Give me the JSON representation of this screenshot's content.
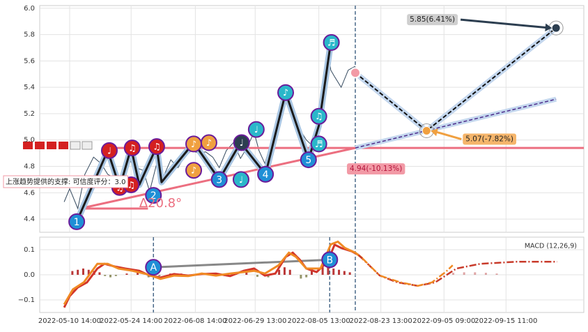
{
  "chart_data": [
    {
      "type": "price",
      "ylim": [
        4.3,
        6.02
      ],
      "yticks": [
        4.4,
        4.6,
        4.8,
        {
          "value": 5.0,
          "label": "5.0"
        },
        5.2,
        5.4,
        5.6,
        5.8,
        {
          "value": 6.0,
          "label": "6.0"
        }
      ],
      "xlim": [
        0,
        100
      ],
      "grid": true,
      "price": {
        "color": "#34495e",
        "x": [
          4.5,
          5.5,
          7.0,
          8.3,
          9.9,
          11.3,
          12.5,
          13.8,
          15.1,
          16.4,
          17.7,
          19.0,
          20.2,
          21.5,
          22.4,
          24.1,
          25.4,
          26.6,
          27.9,
          29.2,
          30.5,
          31.8,
          33.0,
          34.3,
          35.6,
          36.9,
          38.2,
          39.4,
          40.3,
          41.4,
          42.6,
          43.9,
          45.2,
          46.5,
          47.8,
          49.0,
          50.3,
          50.9,
          51.6,
          52.2,
          52.9,
          53.5,
          54.2,
          55.4,
          56.7,
          58.0
        ],
        "values": [
          4.53,
          4.63,
          4.48,
          4.74,
          4.87,
          4.82,
          4.74,
          4.71,
          4.68,
          4.85,
          4.79,
          4.77,
          4.61,
          4.82,
          4.69,
          4.85,
          4.79,
          4.87,
          4.92,
          4.9,
          4.91,
          4.87,
          4.79,
          4.92,
          4.98,
          4.86,
          4.95,
          5.06,
          4.92,
          4.82,
          5.0,
          5.14,
          5.32,
          5.19,
          5.08,
          5.0,
          4.95,
          5.03,
          5.11,
          5.43,
          5.73,
          5.53,
          5.48,
          5.4,
          5.53,
          5.56
        ]
      },
      "wave": {
        "color": "#1b1b1b",
        "halo": "#a9c6e3",
        "x": [
          6.8,
          12.5,
          14.7,
          16.8,
          18.3,
          21.5,
          22.4,
          28.3,
          33.0,
          36.9,
          41.5,
          45.2,
          49.4,
          51.3,
          53.5
        ],
        "values": [
          4.38,
          4.92,
          4.64,
          4.94,
          4.66,
          4.95,
          4.68,
          4.98,
          4.7,
          4.98,
          4.74,
          5.36,
          4.85,
          5.11,
          5.74
        ]
      },
      "support": {
        "color": "#ec6f80",
        "x": [
          7.4,
          58.0
        ],
        "values": [
          4.48,
          4.94
        ]
      },
      "support_base": {
        "color": "#ec6f80",
        "x": [
          7.4,
          19.9
        ],
        "values": [
          4.48,
          4.48
        ]
      },
      "support_ext": {
        "color": "#4b2a8a",
        "halo": "#c4d7ee",
        "x": [
          58.0,
          94.9
        ],
        "values": [
          4.94,
          5.31
        ]
      },
      "resistance": {
        "color": "#ec6f80",
        "x": [
          11.9,
          100
        ],
        "values": [
          4.94,
          4.94
        ]
      },
      "projection": {
        "color": "#111111",
        "halo": "#c4d7ee",
        "x": [
          58.0,
          71.1,
          94.9
        ],
        "values": [
          5.51,
          5.07,
          5.85
        ]
      },
      "points": {
        "color": "#1f8fd6",
        "labels": [
          "1",
          "2",
          "3",
          "4",
          "5"
        ],
        "x": [
          6.8,
          20.9,
          33.0,
          41.5,
          49.4
        ],
        "values": [
          4.38,
          4.58,
          4.7,
          4.74,
          4.85
        ]
      },
      "signals": {
        "labels": [
          "♩",
          "♫",
          "♫",
          "♫",
          "♫",
          "♪",
          "♪",
          "♪",
          "♩",
          "♩",
          "♩",
          "♪",
          "♫",
          "♬",
          "♬"
        ],
        "colors": [
          "#d42020",
          "#d42020",
          "#d42020",
          "#d42020",
          "#d42020",
          "#f0a040",
          "#f0a040",
          "#f0a040",
          "#2c3e50",
          "#2ab7ca",
          "#2ab7ca",
          "#2ab7ca",
          "#2ab7ca",
          "#2ab7ca",
          "#2ab7ca"
        ],
        "x": [
          12.8,
          17.0,
          21.5,
          14.7,
          16.8,
          28.3,
          31.1,
          28.3,
          37.1,
          39.8,
          37.0,
          45.2,
          51.3,
          51.3,
          53.6
        ],
        "values": [
          4.92,
          4.94,
          4.95,
          4.64,
          4.66,
          4.97,
          4.98,
          4.77,
          4.98,
          5.08,
          4.7,
          5.36,
          5.18,
          4.97,
          5.74
        ]
      },
      "annotations": [
        {
          "text": "5.85(6.41%)",
          "x": 94.9,
          "value": 5.85,
          "color": "#cfcfcf"
        },
        {
          "text": "5.07(-7.82%)",
          "x": 71.1,
          "value": 5.07,
          "color": "#f5b56b"
        },
        {
          "text": "4.94(-10.13%)",
          "x": 58.0,
          "value": 4.94,
          "color": "#f29aa6"
        }
      ],
      "support_note": "上涨趋势提供的支撑: 可信度评分：3.0",
      "angle_label": "∆20.8°"
    },
    {
      "type": "macd",
      "title": "MACD (12,26,9)",
      "ylim": [
        -0.15,
        0.15
      ],
      "yticks": [
        {
          "value": -0.1,
          "label": "−0.1"
        },
        {
          "value": 0,
          "label": "0.0"
        },
        0.1
      ],
      "xlim": [
        0,
        100
      ],
      "grid": true,
      "xticks": [
        {
          "value": 5.5,
          "label": "2022-05-10 14:00"
        },
        {
          "value": 16.8,
          "label": "2022-05-24 14:00"
        },
        {
          "value": 28.6,
          "label": "2022-06-08 14:00"
        },
        {
          "value": 39.6,
          "label": "2022-06-29 13:00"
        },
        {
          "value": 51.3,
          "label": "2022-08-05 13:00"
        },
        {
          "value": 62.7,
          "label": "2022-08-23 13:00"
        },
        {
          "value": 74.3,
          "label": "2022-09-05 09:00"
        },
        {
          "value": 85.7,
          "label": "2022-09-15 11:00"
        }
      ],
      "macd": {
        "color": "#d2352a",
        "x": [
          4.5,
          5.5,
          7.0,
          8.7,
          10.6,
          11.9,
          13.8,
          15.7,
          18.3,
          20.2,
          22.2,
          24.7,
          27.3,
          29.8,
          32.4,
          35.0,
          37.5,
          39.4,
          41.4,
          43.3,
          45.2,
          46.5,
          47.8,
          49.0,
          50.9,
          52.9,
          54.2,
          55.4,
          57.4,
          58.6
        ],
        "values": [
          -0.13,
          -0.085,
          -0.05,
          -0.03,
          0.025,
          0.044,
          0.033,
          0.025,
          0.016,
          -0.003,
          -0.011,
          0.003,
          -0.003,
          0.003,
          0.005,
          -0.005,
          0.016,
          0.025,
          -0.003,
          0.005,
          0.071,
          0.088,
          0.06,
          0.025,
          0.011,
          0.052,
          0.12,
          0.107,
          0.093,
          0.079
        ]
      },
      "signal": {
        "color": "#f08a24",
        "x": [
          4.5,
          6.1,
          8.1,
          10.6,
          12.5,
          14.5,
          17.0,
          19.6,
          22.2,
          24.7,
          27.3,
          29.8,
          32.4,
          35.0,
          37.5,
          39.4,
          41.4,
          43.9,
          45.8,
          47.1,
          49.0,
          51.6,
          53.5,
          54.8,
          56.1,
          58.0,
          59.3
        ],
        "values": [
          -0.118,
          -0.058,
          -0.03,
          0.044,
          0.044,
          0.025,
          0.016,
          0.003,
          -0.016,
          -0.003,
          -0.005,
          0.005,
          -0.003,
          0.005,
          0.011,
          0.016,
          0.005,
          0.038,
          0.088,
          0.071,
          0.025,
          0.025,
          0.121,
          0.132,
          0.107,
          0.088,
          0.066
        ]
      },
      "macd_forecast": {
        "color": "#c83a2a",
        "x": [
          58.6,
          62.5,
          65.7,
          69.5,
          72.7,
          76.6,
          81.0,
          87.5,
          95.1
        ],
        "values": [
          0.079,
          -0.003,
          -0.03,
          -0.044,
          -0.03,
          0.025,
          0.044,
          0.052,
          0.052
        ]
      },
      "signal_forecast": {
        "color": "#f08a24",
        "x": [
          59.3,
          62.5,
          66.3,
          69.5,
          72.1,
          74.6,
          75.9
        ],
        "values": [
          0.066,
          -0.003,
          -0.03,
          -0.044,
          -0.03,
          0.011,
          0.038
        ]
      },
      "histogram": {
        "up": "#b22222",
        "down": "#8a8a5a",
        "x": [
          6,
          7,
          8,
          9,
          10,
          11,
          12,
          13,
          14,
          16,
          18,
          20,
          22,
          24,
          26,
          28,
          30,
          32,
          34,
          36,
          38,
          40,
          42,
          44,
          45,
          46,
          48,
          49,
          50,
          52,
          53,
          54,
          55,
          56,
          57,
          74,
          76,
          78,
          80,
          82,
          84
        ],
        "values": [
          0.015,
          0.02,
          0.025,
          0.02,
          0.015,
          0.01,
          -0.005,
          -0.01,
          -0.005,
          0.005,
          0.01,
          -0.01,
          -0.005,
          0.005,
          0.005,
          -0.005,
          0.005,
          0.008,
          -0.005,
          0.005,
          0.01,
          -0.008,
          -0.01,
          0.02,
          0.03,
          0.02,
          -0.015,
          -0.01,
          0.015,
          0.03,
          0.035,
          0.025,
          0.02,
          0.015,
          0.01,
          0.005,
          0.008,
          0.01,
          0.01,
          0.008,
          0.005
        ]
      },
      "points": {
        "color": "#1f8fd6",
        "line": "#888888",
        "labels": [
          "A",
          "B"
        ],
        "x": [
          20.9,
          53.3
        ],
        "values": [
          0.03,
          0.06
        ]
      }
    }
  ]
}
